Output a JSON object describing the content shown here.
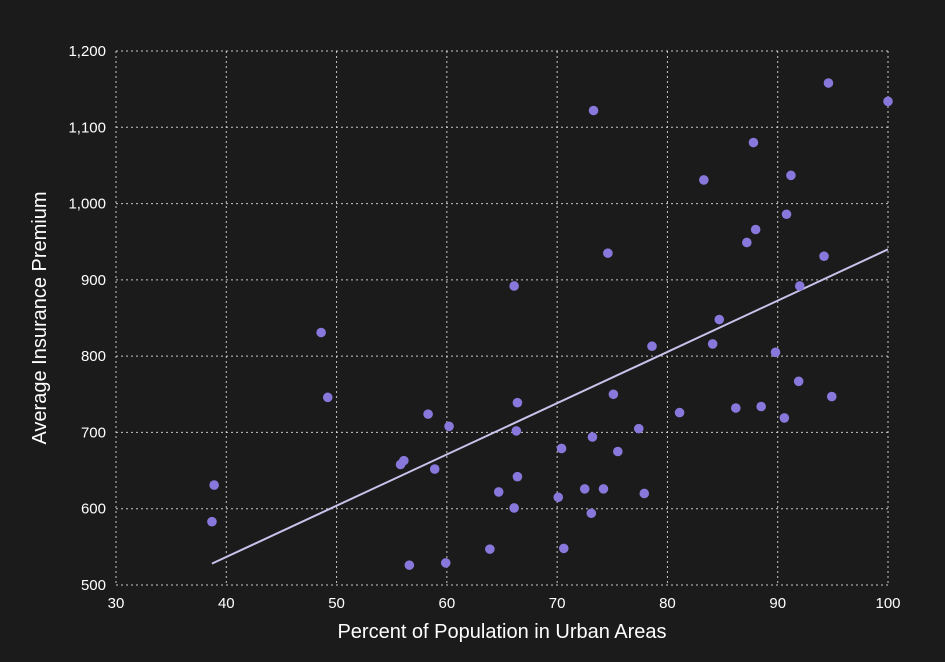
{
  "chart_data": {
    "type": "scatter",
    "xlabel": "Percent of Population in Urban Areas",
    "ylabel": "Average Insurance Premium",
    "xlim": [
      30,
      100
    ],
    "ylim": [
      500,
      1200
    ],
    "xticks": [
      30,
      40,
      50,
      60,
      70,
      80,
      90,
      100
    ],
    "yticks": [
      500,
      600,
      700,
      800,
      900,
      1000,
      1100,
      1200
    ],
    "xtick_labels": [
      "30",
      "40",
      "50",
      "60",
      "70",
      "80",
      "90",
      "100"
    ],
    "ytick_labels": [
      "500",
      "600",
      "700",
      "800",
      "900",
      "1,000",
      "1,100",
      "1,200"
    ],
    "grid": true,
    "point_color": "#8878db",
    "line_color": "#c9c3ec",
    "background": "#1b1b1b",
    "points": [
      {
        "x": 38.7,
        "y": 583
      },
      {
        "x": 38.9,
        "y": 631
      },
      {
        "x": 48.6,
        "y": 831
      },
      {
        "x": 49.2,
        "y": 746
      },
      {
        "x": 55.8,
        "y": 658
      },
      {
        "x": 56.1,
        "y": 663
      },
      {
        "x": 56.6,
        "y": 526
      },
      {
        "x": 58.3,
        "y": 724
      },
      {
        "x": 58.9,
        "y": 652
      },
      {
        "x": 59.9,
        "y": 529
      },
      {
        "x": 60.2,
        "y": 708
      },
      {
        "x": 63.9,
        "y": 547
      },
      {
        "x": 64.7,
        "y": 622
      },
      {
        "x": 66.1,
        "y": 601
      },
      {
        "x": 66.1,
        "y": 892
      },
      {
        "x": 66.3,
        "y": 702
      },
      {
        "x": 66.4,
        "y": 739
      },
      {
        "x": 66.4,
        "y": 642
      },
      {
        "x": 70.1,
        "y": 615
      },
      {
        "x": 70.4,
        "y": 679
      },
      {
        "x": 70.6,
        "y": 548
      },
      {
        "x": 72.5,
        "y": 626
      },
      {
        "x": 73.1,
        "y": 594
      },
      {
        "x": 73.2,
        "y": 694
      },
      {
        "x": 73.3,
        "y": 1122
      },
      {
        "x": 74.2,
        "y": 626
      },
      {
        "x": 74.6,
        "y": 935
      },
      {
        "x": 75.1,
        "y": 750
      },
      {
        "x": 75.5,
        "y": 675
      },
      {
        "x": 77.4,
        "y": 705
      },
      {
        "x": 77.9,
        "y": 620
      },
      {
        "x": 78.6,
        "y": 813
      },
      {
        "x": 81.1,
        "y": 726
      },
      {
        "x": 83.3,
        "y": 1031
      },
      {
        "x": 84.1,
        "y": 816
      },
      {
        "x": 84.7,
        "y": 848
      },
      {
        "x": 86.2,
        "y": 732
      },
      {
        "x": 87.2,
        "y": 949
      },
      {
        "x": 87.8,
        "y": 1080
      },
      {
        "x": 88.0,
        "y": 966
      },
      {
        "x": 88.5,
        "y": 734
      },
      {
        "x": 89.8,
        "y": 805
      },
      {
        "x": 90.6,
        "y": 719
      },
      {
        "x": 90.8,
        "y": 986
      },
      {
        "x": 91.2,
        "y": 1037
      },
      {
        "x": 91.9,
        "y": 767
      },
      {
        "x": 92.0,
        "y": 892
      },
      {
        "x": 94.2,
        "y": 931
      },
      {
        "x": 94.6,
        "y": 1158
      },
      {
        "x": 94.9,
        "y": 747
      },
      {
        "x": 100.0,
        "y": 1134
      }
    ],
    "trendline": {
      "x": [
        38.7,
        100
      ],
      "y": [
        528,
        940
      ]
    }
  }
}
